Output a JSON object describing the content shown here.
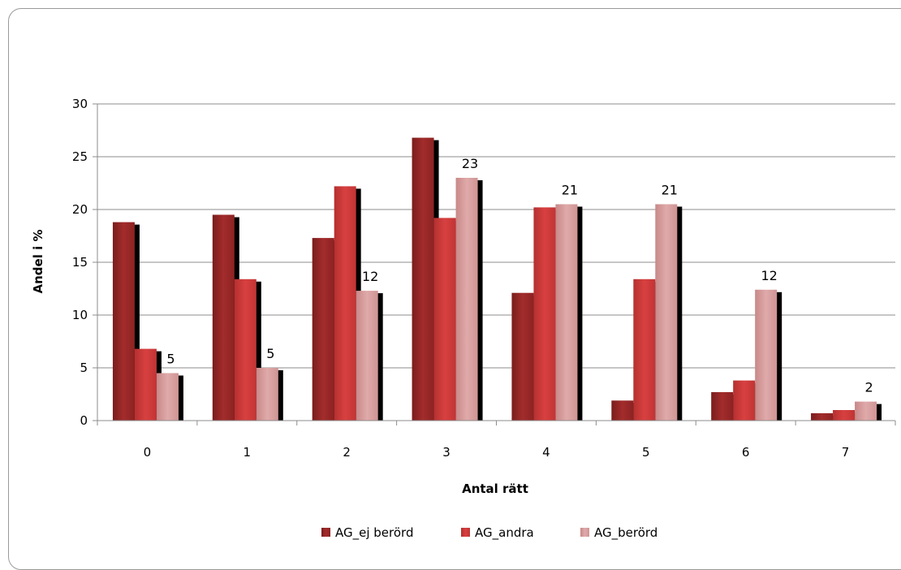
{
  "chart_data": {
    "type": "bar",
    "title": "",
    "xlabel": "Antal rätt",
    "ylabel": "Andel i %",
    "ylim": [
      0,
      30
    ],
    "yticks": [
      0,
      5,
      10,
      15,
      20,
      25,
      30
    ],
    "grid": true,
    "legend_position": "bottom",
    "categories": [
      "0",
      "1",
      "2",
      "3",
      "4",
      "5",
      "6",
      "7"
    ],
    "series": [
      {
        "name": "AG_ej berörd",
        "color": "#9e2a2a",
        "values": [
          18.8,
          19.5,
          17.3,
          26.8,
          12.1,
          1.9,
          2.7,
          0.7
        ],
        "labels": [
          null,
          null,
          null,
          null,
          null,
          null,
          null,
          null
        ]
      },
      {
        "name": "AG_andra",
        "color": "#cf3b3b",
        "values": [
          6.8,
          13.4,
          22.2,
          19.2,
          20.2,
          13.4,
          3.8,
          1.0
        ],
        "labels": [
          null,
          null,
          null,
          null,
          null,
          null,
          null,
          null
        ]
      },
      {
        "name": "AG_berörd",
        "color": "#d9a0a0",
        "values": [
          4.5,
          5.0,
          12.3,
          23.0,
          20.5,
          20.5,
          12.4,
          1.8
        ],
        "labels": [
          "5",
          "5",
          "12",
          "23",
          "21",
          "21",
          "12",
          "2"
        ]
      }
    ]
  }
}
